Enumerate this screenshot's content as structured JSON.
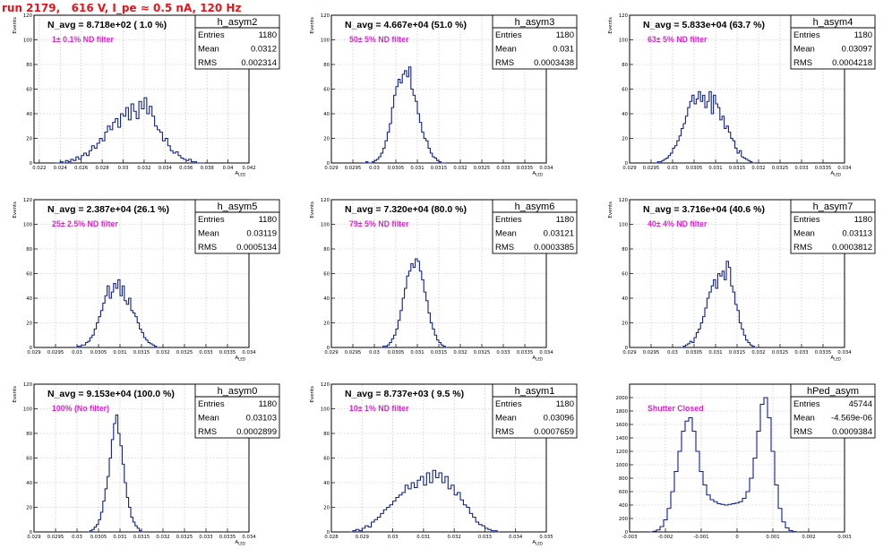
{
  "page": {
    "title": "run 2179,   616 V, I_pe ≈ 0.5 nA, 120 Hz"
  },
  "colors": {
    "title": "#e8141b",
    "histogram": "#0d1f8a",
    "filter_label": "#e020d0"
  },
  "chart_data": [
    {
      "type": "bar",
      "name": "h_asym2",
      "title": "N_avg = 8.718e+02 ( 1.0 %)",
      "annotation": "1± 0.1% ND filter",
      "xlabel": "A_LED",
      "ylabel": "Events",
      "xlim": [
        0.0215,
        0.042
      ],
      "ylim": [
        0,
        120
      ],
      "xticks": [
        0.022,
        0.024,
        0.026,
        0.028,
        0.03,
        0.032,
        0.034,
        0.036,
        0.038,
        0.04,
        0.042
      ],
      "xtick_labels": [
        "0.022",
        "0.024",
        "0.026",
        "0.028",
        "0.03",
        "0.032",
        "0.034",
        "0.036",
        "0.038",
        "0.04",
        "0.042"
      ],
      "yticks": [
        0,
        20,
        40,
        60,
        80,
        100,
        120
      ],
      "bins": {
        "start": 0.0235,
        "width": 0.00025,
        "values": [
          0,
          0,
          1,
          0,
          2,
          1,
          3,
          2,
          5,
          3,
          6,
          8,
          6,
          10,
          14,
          12,
          16,
          20,
          18,
          25,
          30,
          27,
          33,
          36,
          29,
          40,
          38,
          45,
          35,
          48,
          42,
          36,
          50,
          44,
          53,
          40,
          46,
          38,
          30,
          27,
          25,
          18,
          20,
          14,
          10,
          8,
          9,
          6,
          4,
          3,
          2,
          3,
          1,
          1,
          0,
          0,
          0
        ]
      },
      "stats": {
        "title": "h_asym2",
        "rows": [
          [
            "Entries",
            "1180"
          ],
          [
            "Mean",
            "0.0312"
          ],
          [
            "RMS",
            "0.002314"
          ]
        ]
      }
    },
    {
      "type": "bar",
      "name": "h_asym3",
      "title": "N_avg = 4.667e+04 (51.0 %)",
      "annotation": "50± 5% ND filter",
      "xlabel": "A_LED",
      "ylabel": "Events",
      "xlim": [
        0.029,
        0.034
      ],
      "ylim": [
        0,
        120
      ],
      "xticks": [
        0.029,
        0.0295,
        0.03,
        0.0305,
        0.031,
        0.0315,
        0.032,
        0.0325,
        0.033,
        0.0335,
        0.034
      ],
      "xtick_labels": [
        "0.029",
        "0.0295",
        "0.03",
        "0.0305",
        "0.031",
        "0.0315",
        "0.032",
        "0.0325",
        "0.033",
        "0.0335",
        "0.034"
      ],
      "yticks": [
        0,
        20,
        40,
        60,
        80,
        100,
        120
      ],
      "bins": {
        "start": 0.02975,
        "width": 5e-05,
        "values": [
          0,
          1,
          0,
          0,
          1,
          2,
          3,
          5,
          8,
          12,
          18,
          25,
          32,
          45,
          55,
          62,
          68,
          65,
          72,
          75,
          70,
          78,
          60,
          55,
          50,
          40,
          33,
          25,
          20,
          18,
          12,
          8,
          5,
          4,
          2,
          1,
          0,
          0
        ]
      },
      "stats": {
        "title": "h_asym3",
        "rows": [
          [
            "Entries",
            "1180"
          ],
          [
            "Mean",
            "0.031"
          ],
          [
            "RMS",
            "0.0003438"
          ]
        ]
      }
    },
    {
      "type": "bar",
      "name": "h_asym4",
      "title": "N_avg = 5.833e+04 (63.7 %)",
      "annotation": "63± 5% ND filter",
      "xlabel": "A_LED",
      "ylabel": "Events",
      "xlim": [
        0.029,
        0.034
      ],
      "ylim": [
        0,
        120
      ],
      "xticks": [
        0.029,
        0.0295,
        0.03,
        0.0305,
        0.031,
        0.0315,
        0.032,
        0.0325,
        0.033,
        0.0335,
        0.034
      ],
      "xtick_labels": [
        "0.029",
        "0.0295",
        "0.03",
        "0.0305",
        "0.031",
        "0.0315",
        "0.032",
        "0.0325",
        "0.033",
        "0.0335",
        "0.034"
      ],
      "yticks": [
        0,
        20,
        40,
        60,
        80,
        100,
        120
      ],
      "bins": {
        "start": 0.0296,
        "width": 5e-05,
        "values": [
          0,
          1,
          1,
          2,
          3,
          4,
          6,
          8,
          12,
          14,
          18,
          22,
          28,
          32,
          38,
          45,
          50,
          55,
          48,
          52,
          58,
          50,
          55,
          45,
          50,
          58,
          40,
          55,
          48,
          45,
          35,
          38,
          28,
          30,
          25,
          20,
          18,
          12,
          8,
          10,
          5,
          4,
          3,
          2,
          1,
          0
        ]
      },
      "stats": {
        "title": "h_asym4",
        "rows": [
          [
            "Entries",
            "1180"
          ],
          [
            "Mean",
            "0.03097"
          ],
          [
            "RMS",
            "0.0004218"
          ]
        ]
      }
    },
    {
      "type": "bar",
      "name": "h_asym5",
      "title": "N_avg = 2.387e+04 (26.1 %)",
      "annotation": "25± 2.5% ND filter",
      "xlabel": "A_LED",
      "ylabel": "Events",
      "xlim": [
        0.029,
        0.034
      ],
      "ylim": [
        0,
        120
      ],
      "xticks": [
        0.029,
        0.0295,
        0.03,
        0.0305,
        0.031,
        0.0315,
        0.032,
        0.0325,
        0.033,
        0.0335,
        0.034
      ],
      "xtick_labels": [
        "0.029",
        "0.0295",
        "0.03",
        "0.0305",
        "0.031",
        "0.0315",
        "0.032",
        "0.0325",
        "0.033",
        "0.0335",
        "0.034"
      ],
      "yticks": [
        0,
        20,
        40,
        60,
        80,
        100,
        120
      ],
      "bins": {
        "start": 0.02995,
        "width": 5e-05,
        "values": [
          0,
          1,
          1,
          2,
          2,
          4,
          5,
          8,
          10,
          15,
          20,
          25,
          30,
          36,
          42,
          50,
          40,
          45,
          52,
          48,
          55,
          42,
          50,
          38,
          35,
          40,
          30,
          28,
          25,
          20,
          15,
          12,
          8,
          6,
          4,
          3,
          2,
          1,
          0
        ]
      },
      "stats": {
        "title": "h_asym5",
        "rows": [
          [
            "Entries",
            "1180"
          ],
          [
            "Mean",
            "0.03119"
          ],
          [
            "RMS",
            "0.0005134"
          ]
        ]
      }
    },
    {
      "type": "bar",
      "name": "h_asym6",
      "title": "N_avg = 7.320e+04 (80.0 %)",
      "annotation": "79± 5% ND filter",
      "xlabel": "A_LED",
      "ylabel": "Events",
      "xlim": [
        0.029,
        0.034
      ],
      "ylim": [
        0,
        120
      ],
      "xticks": [
        0.029,
        0.0295,
        0.03,
        0.0305,
        0.031,
        0.0315,
        0.032,
        0.0325,
        0.033,
        0.0335,
        0.034
      ],
      "xtick_labels": [
        "0.029",
        "0.0295",
        "0.03",
        "0.0305",
        "0.031",
        "0.0315",
        "0.032",
        "0.0325",
        "0.033",
        "0.0335",
        "0.034"
      ],
      "yticks": [
        0,
        20,
        40,
        60,
        80,
        100,
        120
      ],
      "bins": {
        "start": 0.03015,
        "width": 5e-05,
        "values": [
          0,
          1,
          1,
          2,
          4,
          7,
          10,
          15,
          22,
          30,
          40,
          48,
          58,
          62,
          68,
          65,
          72,
          70,
          62,
          55,
          45,
          38,
          28,
          20,
          15,
          10,
          6,
          4,
          2,
          1,
          0
        ]
      },
      "stats": {
        "title": "h_asym6",
        "rows": [
          [
            "Entries",
            "1180"
          ],
          [
            "Mean",
            "0.03121"
          ],
          [
            "RMS",
            "0.0003385"
          ]
        ]
      }
    },
    {
      "type": "bar",
      "name": "h_asym7",
      "title": "N_avg = 3.716e+04 (40.6 %)",
      "annotation": "40± 4% ND filter",
      "xlabel": "A_LED",
      "ylabel": "Events",
      "xlim": [
        0.029,
        0.034
      ],
      "ylim": [
        0,
        120
      ],
      "xticks": [
        0.029,
        0.0295,
        0.03,
        0.0305,
        0.031,
        0.0315,
        0.032,
        0.0325,
        0.033,
        0.0335,
        0.034
      ],
      "xtick_labels": [
        "0.029",
        "0.0295",
        "0.03",
        "0.0305",
        "0.031",
        "0.0315",
        "0.032",
        "0.0325",
        "0.033",
        "0.0335",
        "0.034"
      ],
      "yticks": [
        0,
        20,
        40,
        60,
        80,
        100,
        120
      ],
      "bins": {
        "start": 0.0302,
        "width": 5e-05,
        "values": [
          0,
          1,
          2,
          3,
          5,
          4,
          8,
          12,
          15,
          20,
          25,
          32,
          40,
          45,
          50,
          55,
          48,
          60,
          58,
          62,
          55,
          70,
          65,
          50,
          45,
          35,
          30,
          20,
          15,
          10,
          6,
          4,
          2,
          1,
          0
        ]
      },
      "stats": {
        "title": "h_asym7",
        "rows": [
          [
            "Entries",
            "1180"
          ],
          [
            "Mean",
            "0.03113"
          ],
          [
            "RMS",
            "0.0003812"
          ]
        ]
      }
    },
    {
      "type": "bar",
      "name": "h_asym0",
      "title": "N_avg = 9.153e+04 (100.0 %)",
      "annotation": "100% (No filter)",
      "xlabel": "A_LED",
      "ylabel": "Events",
      "xlim": [
        0.029,
        0.034
      ],
      "ylim": [
        0,
        120
      ],
      "xticks": [
        0.029,
        0.0295,
        0.03,
        0.0305,
        0.031,
        0.0315,
        0.032,
        0.0325,
        0.033,
        0.0335,
        0.034
      ],
      "xtick_labels": [
        "0.029",
        "0.0295",
        "0.03",
        "0.0305",
        "0.031",
        "0.0315",
        "0.032",
        "0.0325",
        "0.033",
        "0.0335",
        "0.034"
      ],
      "yticks": [
        0,
        20,
        40,
        60,
        80,
        100,
        120
      ],
      "bins": {
        "start": 0.03025,
        "width": 5e-05,
        "values": [
          0,
          1,
          2,
          4,
          6,
          10,
          16,
          25,
          35,
          45,
          60,
          75,
          88,
          95,
          80,
          70,
          55,
          40,
          28,
          20,
          12,
          8,
          5,
          3,
          1,
          0
        ]
      },
      "stats": {
        "title": "h_asym0",
        "rows": [
          [
            "Entries",
            "1180"
          ],
          [
            "Mean",
            "0.03103"
          ],
          [
            "RMS",
            "0.0002899"
          ]
        ]
      }
    },
    {
      "type": "bar",
      "name": "h_asym1",
      "title": "N_avg = 8.737e+03 ( 9.5 %)",
      "annotation": "10± 1% ND filter",
      "xlabel": "A_LED",
      "ylabel": "Events",
      "xlim": [
        0.028,
        0.035
      ],
      "ylim": [
        0,
        120
      ],
      "xticks": [
        0.028,
        0.029,
        0.03,
        0.031,
        0.032,
        0.033,
        0.034,
        0.035
      ],
      "xtick_labels": [
        "0.028",
        "0.029",
        "0.03",
        "0.031",
        "0.032",
        "0.033",
        "0.034",
        "0.035"
      ],
      "yticks": [
        0,
        20,
        40,
        60,
        80,
        100,
        120
      ],
      "bins": {
        "start": 0.0286,
        "width": 0.0001,
        "values": [
          0,
          1,
          2,
          1,
          3,
          5,
          4,
          8,
          10,
          12,
          15,
          18,
          20,
          22,
          25,
          28,
          30,
          32,
          38,
          35,
          40,
          36,
          42,
          45,
          38,
          48,
          40,
          50,
          44,
          48,
          40,
          45,
          35,
          38,
          30,
          32,
          26,
          22,
          20,
          15,
          12,
          8,
          6,
          5,
          3,
          2,
          1,
          1,
          0
        ]
      },
      "stats": {
        "title": "h_asym1",
        "rows": [
          [
            "Entries",
            "1180"
          ],
          [
            "Mean",
            "0.03096"
          ],
          [
            "RMS",
            "0.0007659"
          ]
        ]
      }
    },
    {
      "type": "bar",
      "name": "hPed_asym",
      "title": "",
      "annotation": "Shutter Closed",
      "xlabel": "",
      "ylabel": "",
      "xlim": [
        -0.003,
        0.003
      ],
      "ylim": [
        0,
        2200
      ],
      "xticks": [
        -0.003,
        -0.002,
        -0.001,
        0,
        0.001,
        0.002,
        0.003
      ],
      "xtick_labels": [
        "-0.003",
        "-0.002",
        "-0.001",
        "0",
        "0.001",
        "0.002",
        "0.003"
      ],
      "yticks": [
        0,
        200,
        400,
        600,
        800,
        1000,
        1200,
        1400,
        1600,
        1800,
        2000
      ],
      "bins": {
        "start": -0.00245,
        "width": 0.0001,
        "values": [
          0,
          10,
          30,
          80,
          180,
          350,
          600,
          900,
          1200,
          1500,
          1650,
          1700,
          1500,
          1200,
          900,
          700,
          550,
          480,
          450,
          420,
          410,
          400,
          410,
          420,
          430,
          450,
          500,
          600,
          800,
          1100,
          1500,
          1900,
          2000,
          1700,
          1200,
          700,
          350,
          150,
          60,
          20,
          5,
          0
        ]
      },
      "stats": {
        "title": "hPed_asym",
        "rows": [
          [
            "Entries",
            "45744"
          ],
          [
            "Mean",
            "-4.569e-06"
          ],
          [
            "RMS",
            "0.0009384"
          ]
        ]
      }
    }
  ]
}
